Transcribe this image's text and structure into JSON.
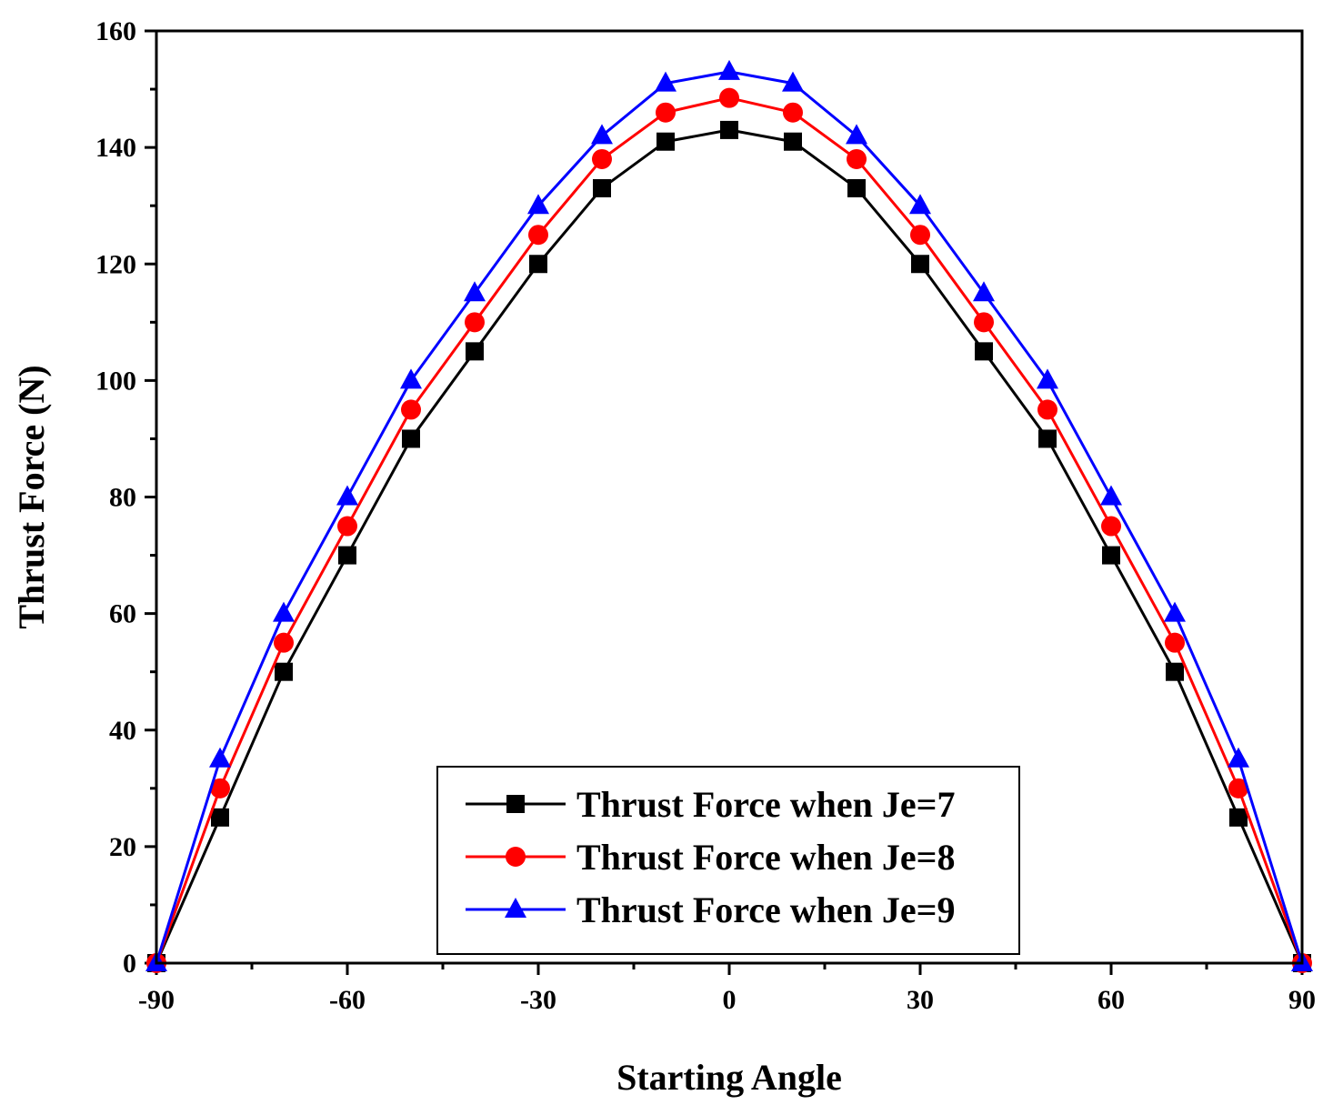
{
  "chart_data": {
    "type": "line",
    "title": "",
    "xlabel": "Starting Angle",
    "ylabel": "Thrust Force (N)",
    "xlim": [
      -90,
      90
    ],
    "ylim": [
      0,
      160
    ],
    "xticks": [
      -90,
      -60,
      -30,
      0,
      30,
      60,
      90
    ],
    "xtick_labels": [
      "-90",
      "-60",
      "-30",
      "0",
      "30",
      "60",
      "90"
    ],
    "yticks": [
      0,
      20,
      40,
      60,
      80,
      100,
      120,
      140,
      160
    ],
    "ytick_labels": [
      "0",
      "20",
      "40",
      "60",
      "80",
      "100",
      "120",
      "140",
      "160"
    ],
    "grid": false,
    "legend_position": "bottom-center",
    "x": [
      -90,
      -80,
      -70,
      -60,
      -50,
      -40,
      -30,
      -20,
      -10,
      0,
      10,
      20,
      30,
      40,
      50,
      60,
      70,
      80,
      90
    ],
    "series": [
      {
        "name": "Thrust Force when Je=7",
        "color": "#000000",
        "marker": "square",
        "values": [
          0,
          25,
          50,
          70,
          90,
          105,
          120,
          133,
          141,
          143,
          141,
          133,
          120,
          105,
          90,
          70,
          50,
          25,
          0
        ]
      },
      {
        "name": "Thrust Force when Je=8",
        "color": "#ff0000",
        "marker": "circle",
        "values": [
          0,
          30,
          55,
          75,
          95,
          110,
          125,
          138,
          146,
          148.5,
          146,
          138,
          125,
          110,
          95,
          75,
          55,
          30,
          0
        ]
      },
      {
        "name": "Thrust Force when Je=9",
        "color": "#0000ff",
        "marker": "triangle",
        "values": [
          0,
          35,
          60,
          80,
          100,
          115,
          130,
          142,
          151,
          153,
          151,
          142,
          130,
          115,
          100,
          80,
          60,
          35,
          0
        ]
      }
    ]
  }
}
